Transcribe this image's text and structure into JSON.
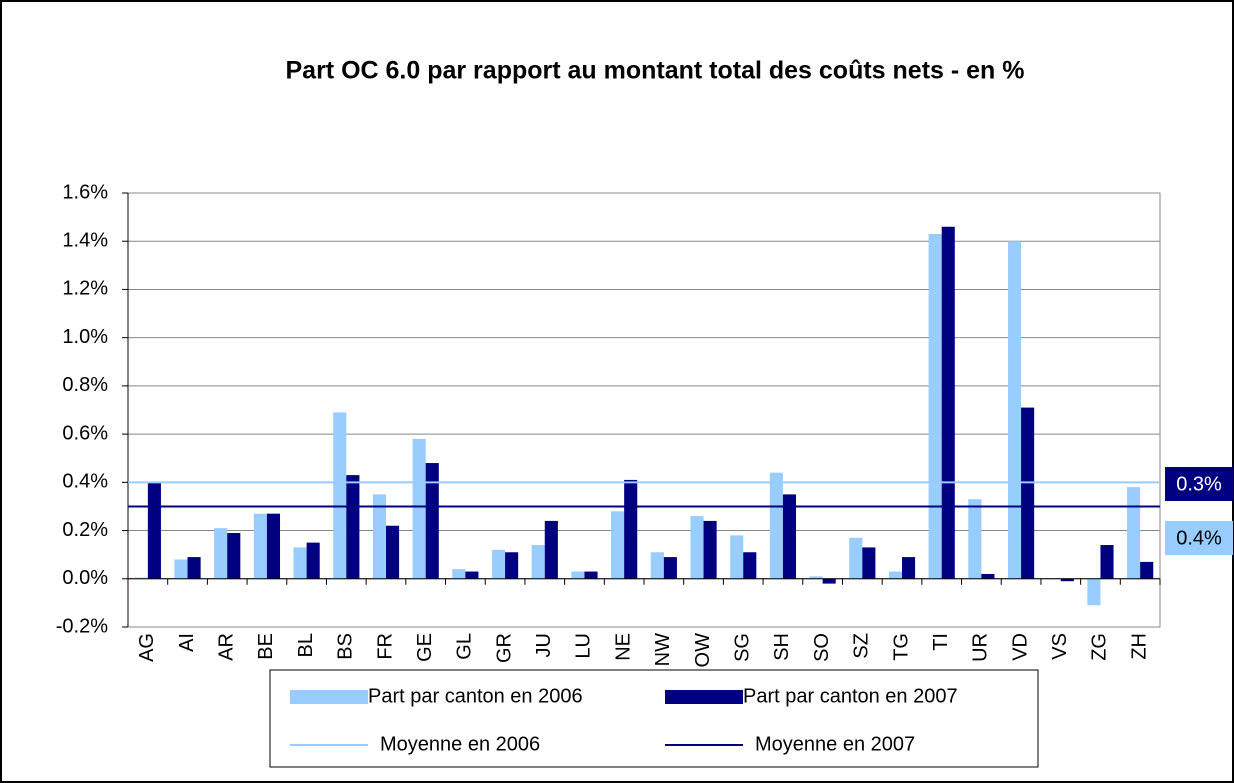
{
  "chart_data": {
    "type": "bar",
    "title": "Part OC 6.0 par rapport au montant total des coûts nets - en %",
    "categories": [
      "AG",
      "AI",
      "AR",
      "BE",
      "BL",
      "BS",
      "FR",
      "GE",
      "GL",
      "GR",
      "JU",
      "LU",
      "NE",
      "NW",
      "OW",
      "SG",
      "SH",
      "SO",
      "SZ",
      "TG",
      "TI",
      "UR",
      "VD",
      "VS",
      "ZG",
      "ZH"
    ],
    "series": [
      {
        "name": "Part par canton en 2006",
        "color": "#99ccff",
        "values": [
          0.005,
          0.08,
          0.21,
          0.27,
          0.13,
          0.69,
          0.35,
          0.58,
          0.04,
          0.12,
          0.14,
          0.03,
          0.28,
          0.11,
          0.26,
          0.18,
          0.44,
          0.01,
          0.17,
          0.03,
          1.43,
          0.33,
          1.4,
          0.0,
          -0.11,
          0.38
        ]
      },
      {
        "name": "Part par canton en 2007",
        "color": "#000080",
        "values": [
          0.4,
          0.09,
          0.19,
          0.27,
          0.15,
          0.43,
          0.22,
          0.48,
          0.03,
          0.11,
          0.24,
          0.03,
          0.41,
          0.09,
          0.24,
          0.11,
          0.35,
          -0.02,
          0.13,
          0.09,
          1.46,
          0.02,
          0.71,
          -0.01,
          0.14,
          0.07
        ]
      }
    ],
    "averages": [
      {
        "name": "Moyenne en 2006",
        "color": "#99ccff",
        "value": 0.4
      },
      {
        "name": "Moyenne en 2007",
        "color": "#000080",
        "value": 0.3
      }
    ],
    "annotations": [
      {
        "text": "0.3%",
        "value": 0.3,
        "color": "#000080"
      },
      {
        "text": "0.4%",
        "value": 0.4,
        "color": "#99ccff"
      }
    ],
    "ylim": [
      -0.2,
      1.6
    ],
    "yticks": [
      {
        "value": -0.2,
        "label": "-0.2%"
      },
      {
        "value": 0,
        "label": "0.0%"
      },
      {
        "value": 0.2,
        "label": "0.2%"
      },
      {
        "value": 0.4,
        "label": "0.4%"
      },
      {
        "value": 0.6,
        "label": "0.6%"
      },
      {
        "value": 0.8,
        "label": "0.8%"
      },
      {
        "value": 1.0,
        "label": "1.0%"
      },
      {
        "value": 1.2,
        "label": "1.2%"
      },
      {
        "value": 1.4,
        "label": "1.4%"
      },
      {
        "value": 1.6,
        "label": "1.6%"
      }
    ],
    "grid": true,
    "legend": "bottom"
  }
}
